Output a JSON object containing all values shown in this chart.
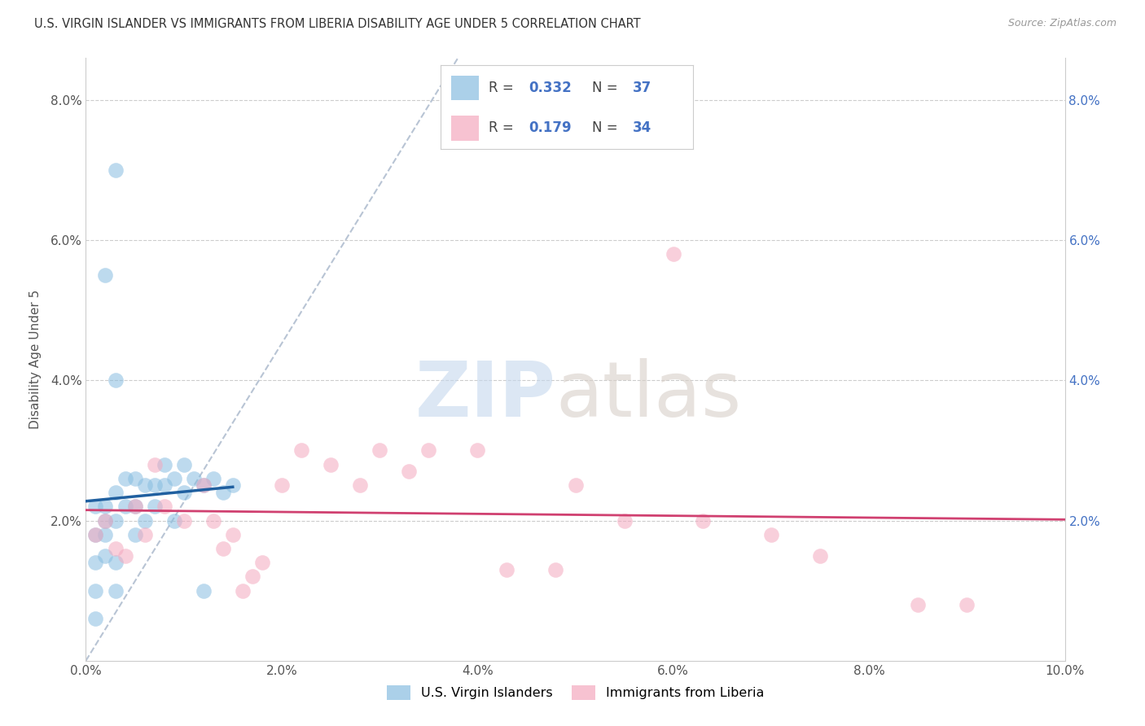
{
  "title": "U.S. VIRGIN ISLANDER VS IMMIGRANTS FROM LIBERIA DISABILITY AGE UNDER 5 CORRELATION CHART",
  "source": "Source: ZipAtlas.com",
  "ylabel": "Disability Age Under 5",
  "xlim": [
    0,
    0.1
  ],
  "ylim": [
    0,
    0.086
  ],
  "xticks": [
    0.0,
    0.02,
    0.04,
    0.06,
    0.08,
    0.1
  ],
  "yticks": [
    0.0,
    0.02,
    0.04,
    0.06,
    0.08
  ],
  "xticklabels": [
    "0.0%",
    "2.0%",
    "4.0%",
    "6.0%",
    "8.0%",
    "10.0%"
  ],
  "yticklabels": [
    "",
    "2.0%",
    "4.0%",
    "6.0%",
    "8.0%"
  ],
  "right_yticklabels": [
    "",
    "2.0%",
    "4.0%",
    "6.0%",
    "8.0%"
  ],
  "legend_label1": "U.S. Virgin Islanders",
  "legend_label2": "Immigrants from Liberia",
  "color_blue": "#88bde0",
  "color_pink": "#f4a8be",
  "trendline_blue": "#2060a0",
  "trendline_pink": "#d04070",
  "trendline_grey": "#b8c4d4",
  "watermark_zip_color": "#c5d8ee",
  "watermark_atlas_color": "#d8cfc8",
  "background_color": "#ffffff",
  "blue_scatter_x": [
    0.001,
    0.001,
    0.001,
    0.001,
    0.001,
    0.002,
    0.002,
    0.002,
    0.002,
    0.003,
    0.003,
    0.003,
    0.003,
    0.004,
    0.004,
    0.005,
    0.005,
    0.005,
    0.006,
    0.006,
    0.007,
    0.007,
    0.008,
    0.008,
    0.009,
    0.009,
    0.01,
    0.01,
    0.011,
    0.012,
    0.013,
    0.014,
    0.002,
    0.003,
    0.003,
    0.015,
    0.012
  ],
  "blue_scatter_y": [
    0.01,
    0.014,
    0.018,
    0.022,
    0.006,
    0.018,
    0.02,
    0.015,
    0.022,
    0.02,
    0.024,
    0.014,
    0.01,
    0.022,
    0.026,
    0.022,
    0.026,
    0.018,
    0.025,
    0.02,
    0.025,
    0.022,
    0.025,
    0.028,
    0.02,
    0.026,
    0.024,
    0.028,
    0.026,
    0.025,
    0.026,
    0.024,
    0.055,
    0.04,
    0.07,
    0.025,
    0.01
  ],
  "pink_scatter_x": [
    0.001,
    0.002,
    0.003,
    0.004,
    0.005,
    0.006,
    0.007,
    0.008,
    0.01,
    0.012,
    0.013,
    0.014,
    0.015,
    0.016,
    0.017,
    0.018,
    0.02,
    0.022,
    0.025,
    0.028,
    0.03,
    0.033,
    0.035,
    0.04,
    0.043,
    0.048,
    0.05,
    0.055,
    0.06,
    0.063,
    0.07,
    0.075,
    0.085,
    0.09
  ],
  "pink_scatter_y": [
    0.018,
    0.02,
    0.016,
    0.015,
    0.022,
    0.018,
    0.028,
    0.022,
    0.02,
    0.025,
    0.02,
    0.016,
    0.018,
    0.01,
    0.012,
    0.014,
    0.025,
    0.03,
    0.028,
    0.025,
    0.03,
    0.027,
    0.03,
    0.03,
    0.013,
    0.013,
    0.025,
    0.02,
    0.058,
    0.02,
    0.018,
    0.015,
    0.008,
    0.008
  ]
}
